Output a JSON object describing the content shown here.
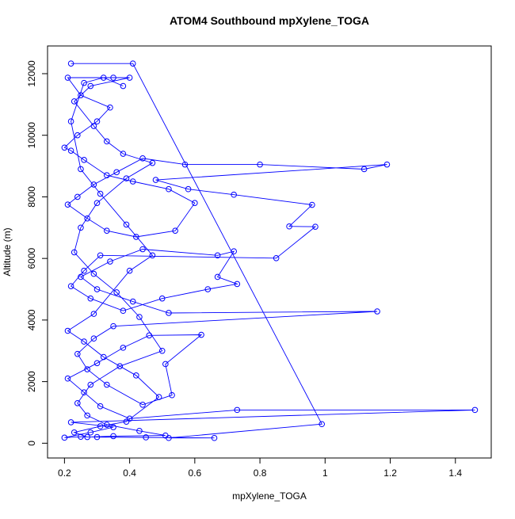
{
  "chart_data": {
    "type": "line",
    "title": "ATOM4 Southbound mpXylene_TOGA",
    "x_label": "mpXylene_TOGA",
    "y_label": "Altitude (m)",
    "color": "#0000ff",
    "markers": "circle",
    "x": [
      0.22,
      0.41,
      0.99,
      0.52,
      0.66,
      0.45,
      0.3,
      0.25,
      0.2,
      0.28,
      0.35,
      0.22,
      1.46,
      0.73,
      0.4,
      0.31,
      0.26,
      0.21,
      0.3,
      0.38,
      0.46,
      0.62,
      0.51,
      0.53,
      0.44,
      0.33,
      0.27,
      0.24,
      0.29,
      0.35,
      1.16,
      0.52,
      0.41,
      0.3,
      0.25,
      0.34,
      0.44,
      0.67,
      0.72,
      0.67,
      0.73,
      0.64,
      0.5,
      0.38,
      0.28,
      0.22,
      0.26,
      0.31,
      0.85,
      0.97,
      0.89,
      0.96,
      0.72,
      0.58,
      0.48,
      1.19,
      1.12,
      0.8,
      0.57,
      0.44,
      0.36,
      0.29,
      0.24,
      0.21,
      0.27,
      0.33,
      0.42,
      0.54,
      0.6,
      0.52,
      0.41,
      0.33,
      0.26,
      0.22,
      0.2,
      0.24,
      0.3,
      0.34,
      0.25,
      0.21,
      0.35,
      0.4,
      0.28,
      0.23,
      0.29,
      0.33,
      0.38,
      0.47,
      0.39,
      0.3,
      0.25,
      0.23,
      0.29,
      0.36,
      0.43,
      0.5,
      0.37,
      0.28,
      0.24,
      0.27,
      0.33,
      0.43,
      0.51,
      0.35,
      0.27,
      0.23,
      0.31,
      0.39,
      0.49,
      0.42,
      0.32,
      0.26,
      0.21,
      0.29,
      0.4,
      0.47,
      0.39,
      0.31,
      0.25,
      0.22,
      0.26,
      0.32,
      0.38
    ],
    "values": [
      12330,
      12330,
      620,
      170,
      170,
      190,
      200,
      210,
      180,
      350,
      520,
      680,
      1080,
      1080,
      800,
      1200,
      1650,
      2100,
      2600,
      3100,
      3500,
      3520,
      2570,
      1560,
      1250,
      1900,
      2400,
      2900,
      3400,
      3800,
      4280,
      4230,
      4600,
      5000,
      5400,
      5900,
      6300,
      6100,
      6230,
      5400,
      5170,
      5000,
      4700,
      4300,
      4700,
      5100,
      5600,
      6100,
      6010,
      7030,
      7040,
      7740,
      8070,
      8250,
      8550,
      9050,
      8900,
      9050,
      9050,
      9250,
      8800,
      8400,
      8000,
      7750,
      7300,
      6900,
      6700,
      6900,
      7800,
      8250,
      8500,
      8700,
      9200,
      9500,
      9600,
      10000,
      10450,
      10900,
      11300,
      11870,
      11870,
      11870,
      11600,
      11100,
      10300,
      9800,
      9400,
      9100,
      8600,
      7800,
      7000,
      6200,
      5500,
      4900,
      4100,
      3000,
      2500,
      1900,
      1300,
      900,
      600,
      400,
      250,
      230,
      200,
      350,
      550,
      700,
      1500,
      2200,
      2800,
      3300,
      3650,
      4200,
      5600,
      6100,
      7100,
      8100,
      8900,
      10450,
      11700,
      11870,
      11600
    ],
    "xlim": [
      0.148,
      1.51
    ],
    "ylim": [
      -480,
      12900
    ],
    "xticks": [
      0.2,
      0.4,
      0.6,
      0.8,
      1.0,
      1.2,
      1.4
    ],
    "yticks": [
      0,
      2000,
      4000,
      6000,
      8000,
      10000,
      12000
    ]
  }
}
